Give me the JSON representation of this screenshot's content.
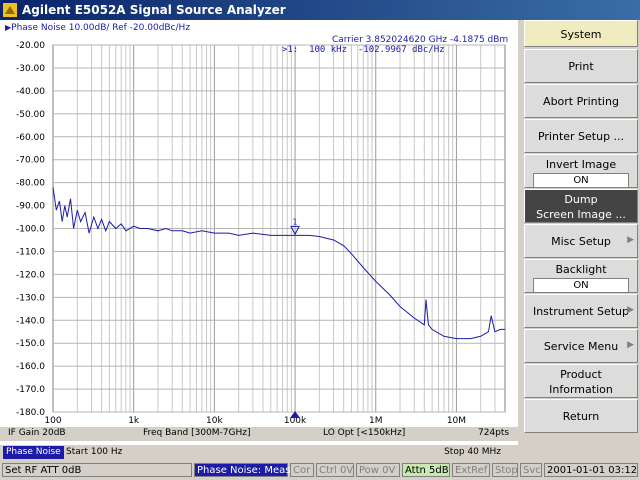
{
  "window": {
    "title": "Agilent E5052A Signal Source Analyzer"
  },
  "trace": {
    "info": "Phase Noise 10.00dB/ Ref -20.00dBc/Hz",
    "carrier": "Carrier 3.852024620 GHz     -4.1875 dBm",
    "marker_readout": ">1:  100 kHz  -102.9967 dBc/Hz",
    "marker_label": "1",
    "trace_color": "#1c1ca8"
  },
  "strip": {
    "if_gain": "IF Gain 20dB",
    "freq_band": "Freq Band [300M-7GHz]",
    "lo_opt": "LO Opt [<150kHz]",
    "points": "724pts"
  },
  "sweep": {
    "channel_tab": "Phase Noise",
    "start": "Start 100 Hz",
    "stop": "Stop 40 MHz"
  },
  "status": {
    "rf_att": "Set RF ATT 0dB",
    "mode": "Phase Noise: Meas",
    "cor": "Cor",
    "ctrl": "Ctrl 0V",
    "pow": "Pow 0V",
    "attn": "Attn 5dB",
    "extref": "ExtRef",
    "stop": "Stop",
    "svc": "Svc",
    "datetime": "2001-01-01 03:12"
  },
  "softkeys": {
    "system": "System",
    "print": "Print",
    "abort_printing": "Abort Printing",
    "printer_setup": "Printer Setup ...",
    "invert_image": "Invert Image",
    "invert_image_value": "ON",
    "dump_line1": "Dump",
    "dump_line2": "Screen Image ...",
    "misc_setup": "Misc Setup",
    "backlight": "Backlight",
    "backlight_value": "ON",
    "instrument_setup": "Instrument Setup",
    "service_menu": "Service Menu",
    "product_info_line1": "Product",
    "product_info_line2": "Information",
    "return": "Return"
  },
  "chart_data": {
    "type": "line",
    "title": "",
    "xscale": "log",
    "xlim": [
      100,
      40000000
    ],
    "ylim": [
      -180,
      -20
    ],
    "xlabel": "",
    "ylabel": "",
    "units": {
      "x": "Hz",
      "y": "dBc/Hz"
    },
    "grid": true,
    "x_tick_labels": [
      {
        "value": 100,
        "label": "100"
      },
      {
        "value": 1000,
        "label": "1k"
      },
      {
        "value": 10000,
        "label": "10k"
      },
      {
        "value": 100000,
        "label": "100k"
      },
      {
        "value": 1000000,
        "label": "1M"
      },
      {
        "value": 10000000,
        "label": "10M"
      }
    ],
    "y_tick_labels": [
      {
        "value": -20,
        "label": "-20.00"
      },
      {
        "value": -30,
        "label": "-30.00"
      },
      {
        "value": -40,
        "label": "-40.00"
      },
      {
        "value": -50,
        "label": "-50.00"
      },
      {
        "value": -60,
        "label": "-60.00"
      },
      {
        "value": -70,
        "label": "-70.00"
      },
      {
        "value": -80,
        "label": "-80.00"
      },
      {
        "value": -90,
        "label": "-90.00"
      },
      {
        "value": -100,
        "label": "-100.0"
      },
      {
        "value": -110,
        "label": "-110.0"
      },
      {
        "value": -120,
        "label": "-120.0"
      },
      {
        "value": -130,
        "label": "-130.0"
      },
      {
        "value": -140,
        "label": "-140.0"
      },
      {
        "value": -150,
        "label": "-150.0"
      },
      {
        "value": -160,
        "label": "-160.0"
      },
      {
        "value": -170,
        "label": "-170.0"
      },
      {
        "value": -180,
        "label": "-180.0"
      }
    ],
    "series": [
      {
        "x": [
          100,
          110,
          120,
          130,
          140,
          150,
          165,
          180,
          200,
          220,
          250,
          280,
          320,
          360,
          400,
          450,
          500,
          600,
          700,
          800,
          1000,
          1200,
          1500,
          2000,
          2500,
          3000,
          4000,
          5000,
          7000,
          10000,
          15000,
          20000,
          30000,
          50000,
          70000,
          100000,
          150000,
          200000,
          300000,
          400000,
          500000,
          700000,
          1000000,
          1500000,
          2000000,
          3000000,
          4000000,
          4200000,
          4500000,
          5000000,
          7000000,
          10000000,
          15000000,
          20000000,
          25000000,
          27000000,
          30000000,
          35000000,
          40000000
        ],
        "y": [
          -82,
          -92,
          -88,
          -97,
          -90,
          -95,
          -87,
          -100,
          -92,
          -97,
          -93,
          -102,
          -95,
          -100,
          -96,
          -101,
          -97,
          -100,
          -98,
          -101,
          -99,
          -100,
          -100,
          -101,
          -100,
          -101,
          -101,
          -102,
          -101,
          -102,
          -102,
          -103,
          -102,
          -103,
          -103,
          -103,
          -103,
          -103.5,
          -105,
          -107.5,
          -111,
          -117,
          -123,
          -129,
          -134,
          -139,
          -142,
          -131,
          -142,
          -144,
          -147,
          -148,
          -148,
          -147,
          -145,
          -138,
          -145,
          -144,
          -144
        ]
      }
    ],
    "marker": {
      "x": 100000,
      "y": -102.9967,
      "label": "1"
    }
  }
}
